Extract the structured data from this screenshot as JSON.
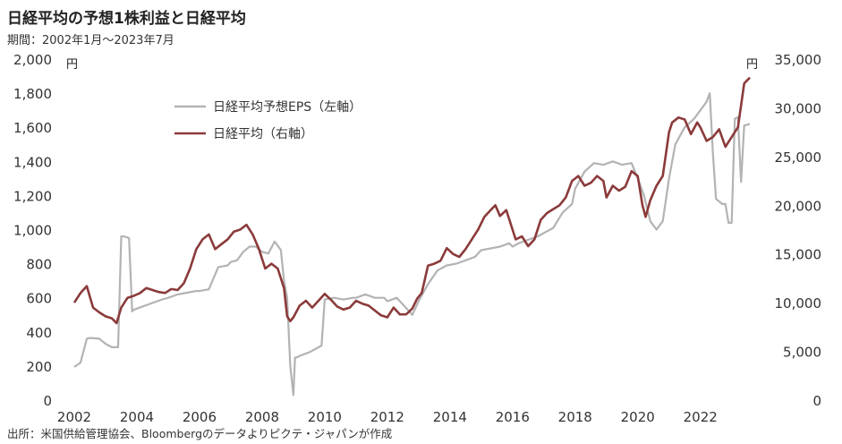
{
  "title": "日経平均の予想1株利益と日経平均",
  "subtitle": "期間：2002年1月～2023年7月",
  "source": "出所：米国供給管理協会、Bloombergのデータよりピクテ・ジャパンが作成",
  "chart_data": {
    "type": "line",
    "left_unit": "円",
    "right_unit": "円",
    "x_ticks": [
      "2002",
      "2004",
      "2006",
      "2008",
      "2010",
      "2012",
      "2014",
      "2016",
      "2018",
      "2020",
      "2022"
    ],
    "x_range": [
      2002.0,
      2023.58
    ],
    "y_left": {
      "range": [
        0,
        2000
      ],
      "ticks": [
        "0",
        "200",
        "400",
        "600",
        "800",
        "1,000",
        "1,200",
        "1,400",
        "1,600",
        "1,800",
        "2,000"
      ]
    },
    "y_right": {
      "range": [
        0,
        35000
      ],
      "ticks": [
        "0",
        "5,000",
        "10,000",
        "15,000",
        "20,000",
        "25,000",
        "30,000",
        "35,000"
      ]
    },
    "legend": {
      "position": "top-left",
      "entries": [
        "日経平均予想EPS（左軸）",
        "日経平均（右軸）"
      ]
    },
    "colors": {
      "eps": "#b3b3b3",
      "nikkei": "#8b3a3a"
    },
    "series": [
      {
        "name": "日経平均予想EPS（左軸）",
        "axis": "left",
        "x": [
          2002.0,
          2002.2,
          2002.4,
          2002.5,
          2002.8,
          2003.0,
          2003.2,
          2003.4,
          2003.5,
          2003.6,
          2003.75,
          2003.85,
          2003.9,
          2004.2,
          2004.5,
          2004.8,
          2005.0,
          2005.3,
          2005.6,
          2005.9,
          2006.0,
          2006.3,
          2006.6,
          2006.9,
          2007.0,
          2007.2,
          2007.4,
          2007.6,
          2007.8,
          2008.0,
          2008.2,
          2008.4,
          2008.6,
          2008.7,
          2008.8,
          2008.9,
          2009.0,
          2009.05,
          2009.1,
          2009.2,
          2009.5,
          2009.7,
          2009.9,
          2010.0,
          2010.3,
          2010.6,
          2010.9,
          2011.0,
          2011.3,
          2011.6,
          2011.9,
          2012.0,
          2012.3,
          2012.5,
          2012.7,
          2012.8,
          2013.0,
          2013.3,
          2013.6,
          2013.9,
          2014.2,
          2014.5,
          2014.8,
          2015.0,
          2015.3,
          2015.6,
          2015.9,
          2016.0,
          2016.2,
          2016.5,
          2016.8,
          2017.0,
          2017.3,
          2017.6,
          2017.9,
          2018.0,
          2018.3,
          2018.6,
          2018.9,
          2019.2,
          2019.5,
          2019.8,
          2020.0,
          2020.2,
          2020.4,
          2020.6,
          2020.8,
          2021.0,
          2021.2,
          2021.5,
          2021.8,
          2022.0,
          2022.2,
          2022.3,
          2022.4,
          2022.5,
          2022.7,
          2022.8,
          2022.9,
          2023.0,
          2023.1,
          2023.2,
          2023.3,
          2023.4,
          2023.58
        ],
        "values": [
          195,
          220,
          360,
          365,
          360,
          330,
          310,
          310,
          960,
          960,
          950,
          520,
          530,
          550,
          570,
          590,
          600,
          620,
          630,
          640,
          640,
          650,
          780,
          790,
          810,
          820,
          870,
          900,
          900,
          870,
          860,
          930,
          880,
          700,
          600,
          200,
          30,
          250,
          250,
          260,
          280,
          300,
          320,
          590,
          600,
          590,
          600,
          600,
          620,
          600,
          600,
          580,
          600,
          560,
          520,
          500,
          580,
          680,
          760,
          790,
          800,
          820,
          840,
          880,
          890,
          900,
          920,
          900,
          920,
          940,
          960,
          980,
          1010,
          1100,
          1150,
          1240,
          1340,
          1390,
          1380,
          1400,
          1380,
          1390,
          1300,
          1200,
          1050,
          1000,
          1050,
          1300,
          1500,
          1600,
          1650,
          1700,
          1750,
          1800,
          1450,
          1180,
          1150,
          1150,
          1040,
          1040,
          1650,
          1660,
          1280,
          1610,
          1620
        ]
      },
      {
        "name": "日経平均（右軸）",
        "axis": "right",
        "x": [
          2002.0,
          2002.2,
          2002.4,
          2002.6,
          2002.8,
          2003.0,
          2003.2,
          2003.35,
          2003.5,
          2003.7,
          2003.9,
          2004.1,
          2004.3,
          2004.5,
          2004.7,
          2004.9,
          2005.1,
          2005.3,
          2005.5,
          2005.7,
          2005.9,
          2006.1,
          2006.3,
          2006.5,
          2006.7,
          2006.9,
          2007.1,
          2007.3,
          2007.5,
          2007.7,
          2007.9,
          2008.1,
          2008.3,
          2008.5,
          2008.7,
          2008.8,
          2008.9,
          2009.0,
          2009.2,
          2009.4,
          2009.6,
          2009.8,
          2010.0,
          2010.2,
          2010.4,
          2010.6,
          2010.8,
          2011.0,
          2011.2,
          2011.4,
          2011.6,
          2011.8,
          2012.0,
          2012.2,
          2012.4,
          2012.6,
          2012.8,
          2012.95,
          2013.1,
          2013.3,
          2013.5,
          2013.7,
          2013.9,
          2014.1,
          2014.3,
          2014.5,
          2014.7,
          2014.9,
          2015.1,
          2015.3,
          2015.45,
          2015.6,
          2015.8,
          2016.0,
          2016.1,
          2016.3,
          2016.5,
          2016.7,
          2016.9,
          2017.1,
          2017.3,
          2017.5,
          2017.7,
          2017.9,
          2018.1,
          2018.3,
          2018.5,
          2018.7,
          2018.9,
          2019.0,
          2019.2,
          2019.4,
          2019.6,
          2019.8,
          2020.0,
          2020.15,
          2020.25,
          2020.4,
          2020.6,
          2020.8,
          2021.0,
          2021.1,
          2021.3,
          2021.5,
          2021.7,
          2021.9,
          2022.0,
          2022.2,
          2022.4,
          2022.6,
          2022.8,
          2023.0,
          2023.2,
          2023.4,
          2023.58
        ],
        "values": [
          10000,
          11000,
          11700,
          9500,
          9000,
          8600,
          8400,
          7900,
          9500,
          10500,
          10700,
          11000,
          11500,
          11300,
          11100,
          11000,
          11400,
          11300,
          12000,
          13500,
          15500,
          16500,
          17000,
          15500,
          16000,
          16500,
          17300,
          17500,
          18000,
          17000,
          15500,
          13500,
          14000,
          13500,
          11500,
          8600,
          8100,
          8500,
          9700,
          10200,
          9500,
          10200,
          10900,
          10300,
          9600,
          9300,
          9500,
          10200,
          9900,
          9700,
          9200,
          8700,
          8500,
          9500,
          8800,
          8800,
          9400,
          10400,
          11000,
          13800,
          14000,
          14300,
          15600,
          15000,
          14700,
          15500,
          16500,
          17500,
          18800,
          19500,
          20000,
          18900,
          19500,
          17500,
          16500,
          16800,
          15800,
          16500,
          18500,
          19200,
          19600,
          20000,
          20800,
          22500,
          23000,
          22000,
          22300,
          23000,
          22500,
          20800,
          22000,
          21500,
          21900,
          23500,
          23000,
          20000,
          18800,
          20500,
          22000,
          23000,
          27500,
          28500,
          29000,
          28800,
          27300,
          28500,
          28000,
          26600,
          27000,
          27800,
          26000,
          27000,
          28000,
          32500,
          33100
        ]
      }
    ]
  }
}
